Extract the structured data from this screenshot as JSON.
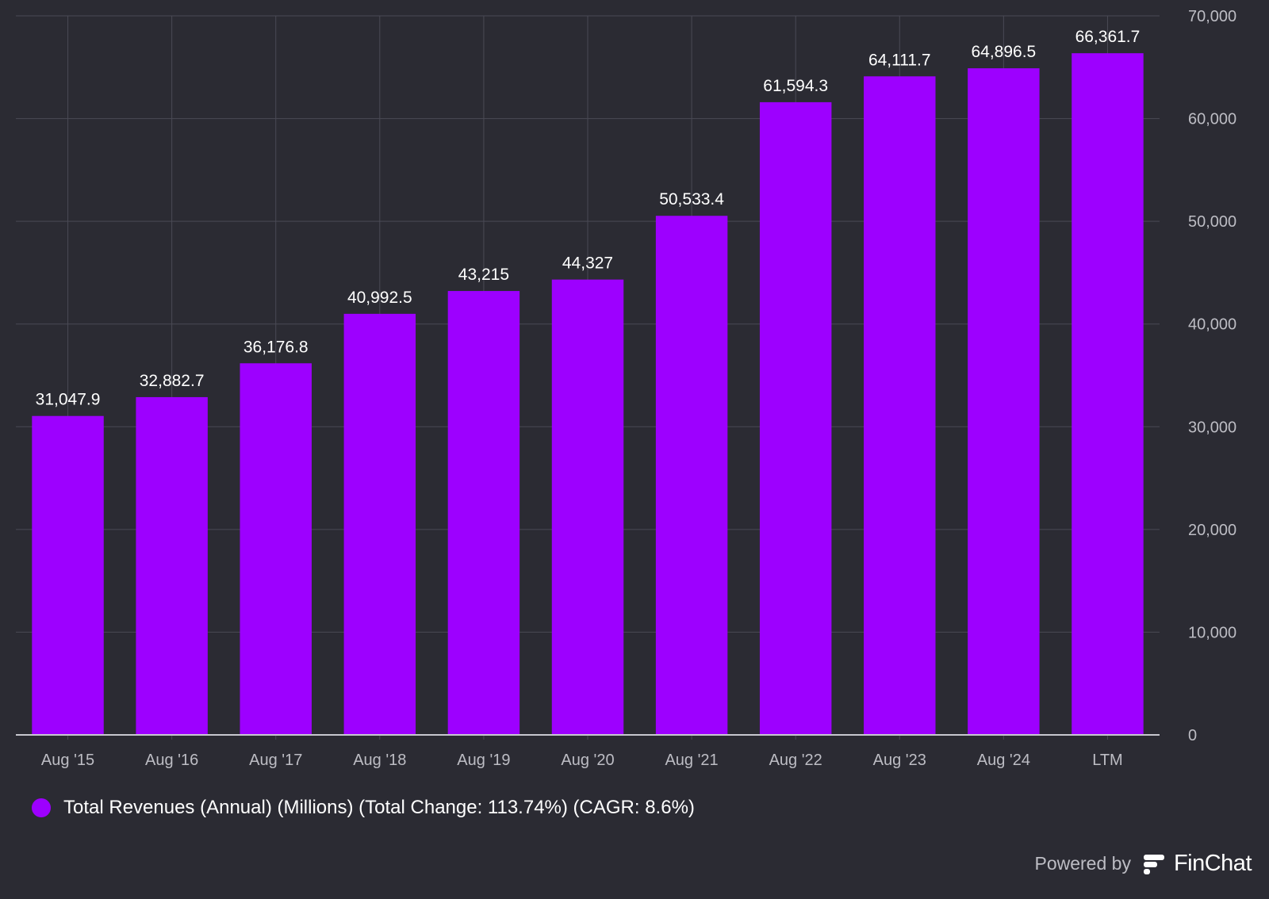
{
  "chart_data": {
    "type": "bar",
    "categories": [
      "Aug '15",
      "Aug '16",
      "Aug '17",
      "Aug '18",
      "Aug '19",
      "Aug '20",
      "Aug '21",
      "Aug '22",
      "Aug '23",
      "Aug '24",
      "LTM"
    ],
    "series": [
      {
        "name": "Total Revenues (Annual) (Millions) (Total Change: 113.74%) (CAGR: 8.6%)",
        "values": [
          31047.9,
          32882.7,
          36176.8,
          40992.5,
          43215,
          44327,
          50533.4,
          61594.3,
          64111.7,
          64896.5,
          66361.7
        ],
        "labels": [
          "31,047.9",
          "32,882.7",
          "36,176.8",
          "40,992.5",
          "43,215",
          "44,327",
          "50,533.4",
          "61,594.3",
          "64,111.7",
          "64,896.5",
          "66,361.7"
        ],
        "color": "#9d00ff"
      }
    ],
    "ylim": [
      0,
      70000
    ],
    "yticks": [
      0,
      10000,
      20000,
      30000,
      40000,
      50000,
      60000,
      70000
    ],
    "ytick_labels": [
      "0",
      "10,000",
      "20,000",
      "30,000",
      "40,000",
      "50,000",
      "60,000",
      "70,000"
    ],
    "y_axis_side": "right",
    "grid": true,
    "legend_position": "bottom-left",
    "title": "",
    "xlabel": "",
    "ylabel": ""
  },
  "legend": {
    "label": "Total Revenues (Annual) (Millions) (Total Change: 113.74%) (CAGR: 8.6%)"
  },
  "branding": {
    "powered_by": "Powered by",
    "name": "FinChat"
  },
  "colors": {
    "background": "#2b2b33",
    "bar": "#9d00ff",
    "grid": "#4a4a55",
    "axis_text": "#bdbdc4"
  }
}
